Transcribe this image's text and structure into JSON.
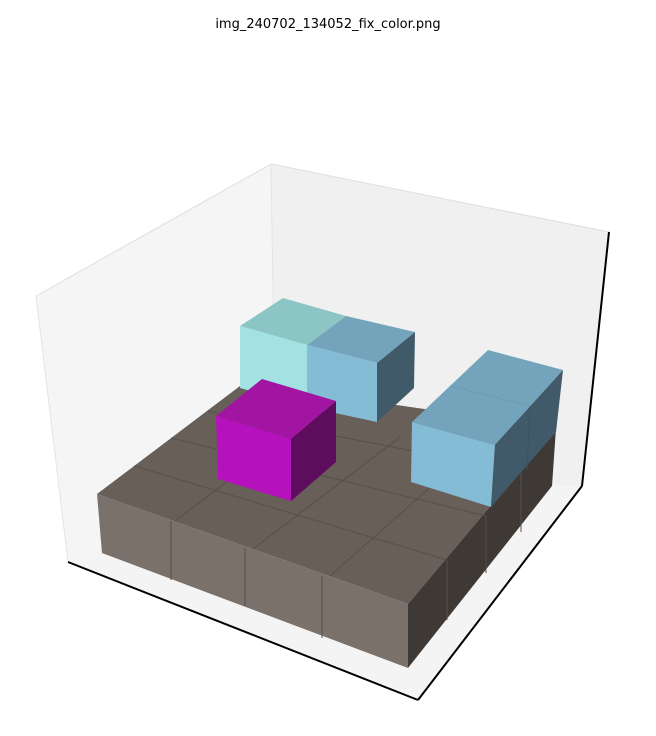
{
  "figure": {
    "title": "img_240702_134052_fix_color.png"
  },
  "axes": {
    "tick_labels_visible": false,
    "pane_colors": {
      "left": "#f5f5f5",
      "back": "#f0f0f0",
      "floor": "#f4f4f4"
    },
    "edge_color": "#000000"
  },
  "blocks": [
    {
      "name": "floor-slab",
      "description": "4x4 base",
      "colors": {
        "top": "#675f58",
        "front": "#7a716b",
        "side": "#3e3935"
      }
    },
    {
      "name": "magenta-cube",
      "colors": {
        "top": "#a214a2",
        "front": "#b512bd",
        "side": "#5e0c5e"
      }
    },
    {
      "name": "cyan-light-cube",
      "colors": {
        "top": "#8cc6c4",
        "front": "#a3e2e2"
      }
    },
    {
      "name": "light-blue-cube-back",
      "colors": {
        "top": "#73a4bb",
        "front": "#84bcd6",
        "side": "#415a69"
      }
    },
    {
      "name": "light-blue-bar-right",
      "colors": {
        "top": "#73a4bb",
        "front": "#84bcd6",
        "side": "#415a69"
      }
    }
  ]
}
